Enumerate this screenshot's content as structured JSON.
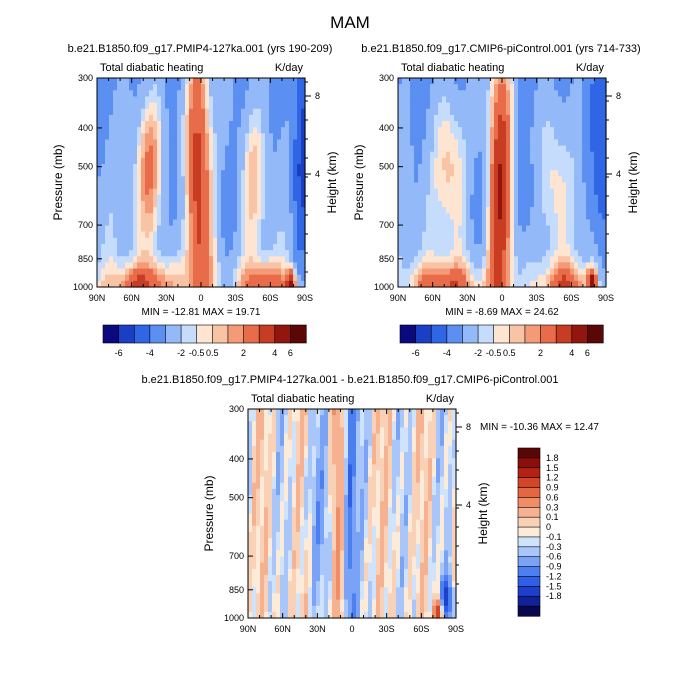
{
  "figure": {
    "title": "MAM"
  },
  "colors": {
    "wide_scale": [
      "#0a0a7e",
      "#1a3ec4",
      "#2e66e6",
      "#5b8ff2",
      "#94b9f8",
      "#c5dcfc",
      "#fde5d2",
      "#f9c3a6",
      "#f49a76",
      "#e86c49",
      "#c83c23",
      "#921510",
      "#5c0707"
    ],
    "diff_scale": [
      "#08084f",
      "#10219a",
      "#1d40cc",
      "#2e5fe6",
      "#4c7ff0",
      "#7aa3f6",
      "#a8c6fa",
      "#d0e3fc",
      "#fdebd9",
      "#f9d1b6",
      "#f5b190",
      "#f08d66",
      "#e66640",
      "#d24527",
      "#b32313",
      "#8c0d0a",
      "#5c0505"
    ]
  },
  "chart_data": [
    {
      "type": "heatmap",
      "subtitle": "b.e21.B1850.f09_g17.PMIP4-127ka.001 (yrs 190-209)",
      "variable_label": "Total diabatic heating",
      "units_label": "K/day",
      "xlabel": "",
      "ylabel": "Pressure (mb)",
      "ylabel_right": "Height (km)",
      "x_ticks": [
        "90N",
        "60N",
        "30N",
        "0",
        "30S",
        "60S",
        "90S"
      ],
      "x_range": [
        90,
        -90
      ],
      "y_ticks": [
        "300",
        "400",
        "500",
        "700",
        "850",
        "1000"
      ],
      "y_range_mb": [
        300,
        1000
      ],
      "y_scale": "log",
      "right_ticks": [
        "8",
        "4"
      ],
      "min_max_label": "MIN = -12.81  MAX = 19.71",
      "colorbar_labels": [
        "-6",
        "-4",
        "-2",
        "-0.5",
        "0.5",
        "2",
        "4",
        "6"
      ],
      "colorbar_orientation": "horizontal",
      "anomaly_scale": 1.0
    },
    {
      "type": "heatmap",
      "subtitle": "b.e21.B1850.f09_g17.CMIP6-piControl.001 (yrs 714-733)",
      "variable_label": "Total diabatic heating",
      "units_label": "K/day",
      "xlabel": "",
      "ylabel": "Pressure (mb)",
      "ylabel_right": "Height (km)",
      "x_ticks": [
        "90N",
        "60N",
        "30N",
        "0",
        "30S",
        "60S",
        "90S"
      ],
      "x_range": [
        90,
        -90
      ],
      "y_ticks": [
        "300",
        "400",
        "500",
        "700",
        "850",
        "1000"
      ],
      "y_range_mb": [
        300,
        1000
      ],
      "y_scale": "log",
      "right_ticks": [
        "8",
        "4"
      ],
      "min_max_label": "MIN = -8.69  MAX = 24.62",
      "colorbar_labels": [
        "-6",
        "-4",
        "-2",
        "-0.5",
        "0.5",
        "2",
        "4",
        "6"
      ],
      "colorbar_orientation": "horizontal",
      "anomaly_scale": 1.0
    },
    {
      "type": "heatmap",
      "subtitle": "b.e21.B1850.f09_g17.PMIP4-127ka.001 - b.e21.B1850.f09_g17.CMIP6-piControl.001",
      "variable_label": "Total diabatic heating",
      "units_label": "K/day",
      "xlabel": "",
      "ylabel": "Pressure (mb)",
      "ylabel_right": "Height (km)",
      "x_ticks": [
        "90N",
        "60N",
        "30N",
        "0",
        "30S",
        "60S",
        "90S"
      ],
      "x_range": [
        90,
        -90
      ],
      "y_ticks": [
        "300",
        "400",
        "500",
        "700",
        "850",
        "1000"
      ],
      "y_range_mb": [
        300,
        1000
      ],
      "y_scale": "log",
      "right_ticks": [
        "8",
        "4"
      ],
      "min_max_label": "MIN = -10.36  MAX =  12.47",
      "colorbar_labels": [
        "1.8",
        "1.5",
        "1.2",
        "0.9",
        "0.6",
        "0.3",
        "0.1",
        "0",
        "-0.1",
        "-0.3",
        "-0.6",
        "-0.9",
        "-1.2",
        "-1.5",
        "-1.8"
      ],
      "colorbar_orientation": "vertical",
      "anomaly_scale": 1.0
    }
  ]
}
